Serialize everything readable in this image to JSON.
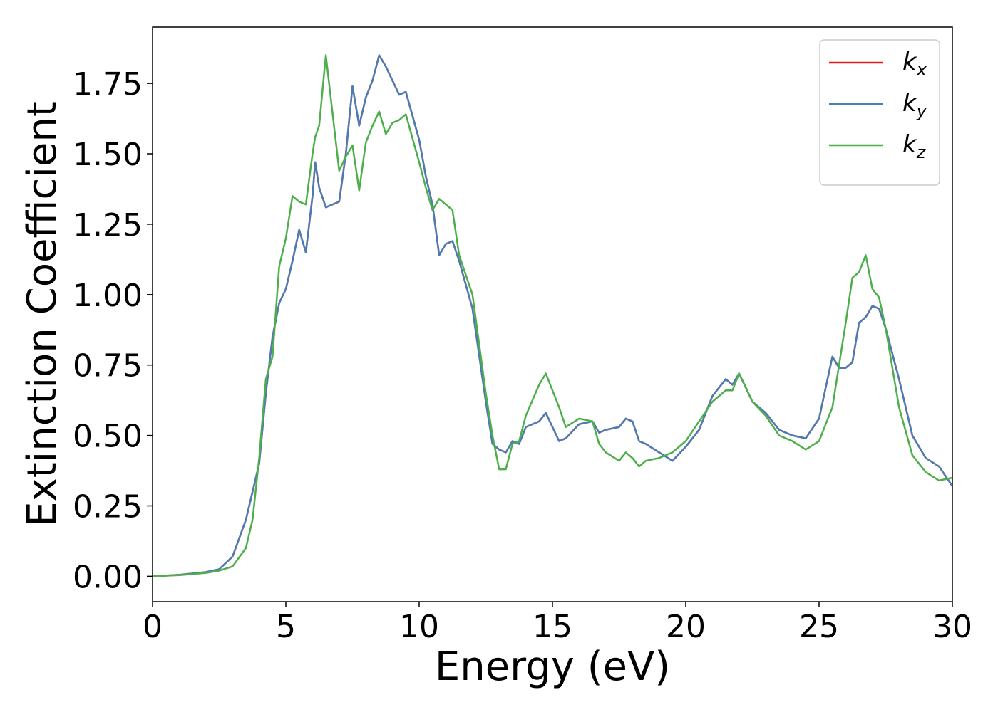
{
  "chart_data": {
    "type": "line",
    "xlabel": "Energy (eV)",
    "ylabel": "Extinction Coefficient",
    "x": [
      0,
      1,
      2,
      2.5,
      3,
      3.5,
      3.75,
      4,
      4.25,
      4.5,
      4.75,
      5,
      5.25,
      5.5,
      5.75,
      6,
      6.1,
      6.25,
      6.5,
      7,
      7.25,
      7.5,
      7.75,
      8,
      8.25,
      8.5,
      8.75,
      9,
      9.25,
      9.5,
      10,
      10.25,
      10.5,
      10.75,
      11,
      11.25,
      11.5,
      12,
      12.5,
      12.75,
      13,
      13.25,
      13.5,
      13.75,
      14,
      14.5,
      14.75,
      15,
      15.25,
      15.5,
      16,
      16.5,
      16.75,
      17,
      17.5,
      17.75,
      18,
      18.25,
      18.5,
      19,
      19.5,
      20,
      20.5,
      21,
      21.5,
      21.75,
      22,
      22.5,
      23,
      23.5,
      24,
      24.5,
      25,
      25.5,
      25.75,
      26,
      26.25,
      26.5,
      26.75,
      27,
      27.25,
      27.5,
      28,
      28.5,
      29,
      29.5,
      30
    ],
    "series": [
      {
        "name": "kx",
        "color": "#e41a1c",
        "values": [
          0,
          0.005,
          0.015,
          0.025,
          0.07,
          0.2,
          0.3,
          0.4,
          0.65,
          0.85,
          0.97,
          1.02,
          1.12,
          1.23,
          1.15,
          1.35,
          1.47,
          1.38,
          1.31,
          1.33,
          1.5,
          1.74,
          1.6,
          1.7,
          1.76,
          1.85,
          1.81,
          1.76,
          1.71,
          1.72,
          1.55,
          1.42,
          1.32,
          1.14,
          1.18,
          1.19,
          1.12,
          0.95,
          0.62,
          0.47,
          0.45,
          0.44,
          0.48,
          0.47,
          0.53,
          0.55,
          0.58,
          0.53,
          0.48,
          0.49,
          0.54,
          0.55,
          0.51,
          0.52,
          0.53,
          0.56,
          0.55,
          0.48,
          0.47,
          0.44,
          0.41,
          0.46,
          0.52,
          0.64,
          0.7,
          0.68,
          0.72,
          0.62,
          0.58,
          0.52,
          0.5,
          0.49,
          0.56,
          0.78,
          0.74,
          0.74,
          0.76,
          0.9,
          0.92,
          0.96,
          0.95,
          0.88,
          0.7,
          0.5,
          0.42,
          0.39,
          0.32
        ]
      },
      {
        "name": "ky",
        "color": "#4a7db5",
        "values": [
          0,
          0.005,
          0.015,
          0.025,
          0.07,
          0.2,
          0.3,
          0.4,
          0.65,
          0.85,
          0.97,
          1.02,
          1.12,
          1.23,
          1.15,
          1.35,
          1.47,
          1.38,
          1.31,
          1.33,
          1.5,
          1.74,
          1.6,
          1.7,
          1.76,
          1.85,
          1.81,
          1.76,
          1.71,
          1.72,
          1.55,
          1.42,
          1.32,
          1.14,
          1.18,
          1.19,
          1.12,
          0.95,
          0.62,
          0.47,
          0.45,
          0.44,
          0.48,
          0.47,
          0.53,
          0.55,
          0.58,
          0.53,
          0.48,
          0.49,
          0.54,
          0.55,
          0.51,
          0.52,
          0.53,
          0.56,
          0.55,
          0.48,
          0.47,
          0.44,
          0.41,
          0.46,
          0.52,
          0.64,
          0.7,
          0.68,
          0.72,
          0.62,
          0.58,
          0.52,
          0.5,
          0.49,
          0.56,
          0.78,
          0.74,
          0.74,
          0.76,
          0.9,
          0.92,
          0.96,
          0.95,
          0.88,
          0.7,
          0.5,
          0.42,
          0.39,
          0.32
        ]
      },
      {
        "name": "kz",
        "color": "#4daf4a",
        "values": [
          0,
          0.004,
          0.012,
          0.02,
          0.035,
          0.1,
          0.2,
          0.42,
          0.7,
          0.78,
          1.1,
          1.2,
          1.35,
          1.33,
          1.32,
          1.5,
          1.56,
          1.6,
          1.85,
          1.44,
          1.49,
          1.53,
          1.37,
          1.54,
          1.6,
          1.65,
          1.57,
          1.61,
          1.62,
          1.64,
          1.47,
          1.38,
          1.3,
          1.34,
          1.32,
          1.3,
          1.14,
          1.0,
          0.65,
          0.5,
          0.38,
          0.38,
          0.47,
          0.48,
          0.57,
          0.68,
          0.72,
          0.66,
          0.6,
          0.53,
          0.56,
          0.55,
          0.47,
          0.44,
          0.41,
          0.44,
          0.42,
          0.39,
          0.41,
          0.42,
          0.44,
          0.48,
          0.55,
          0.62,
          0.66,
          0.66,
          0.72,
          0.62,
          0.57,
          0.5,
          0.48,
          0.45,
          0.48,
          0.6,
          0.75,
          0.9,
          1.06,
          1.08,
          1.14,
          1.02,
          0.99,
          0.88,
          0.6,
          0.43,
          0.37,
          0.34,
          0.35
        ]
      }
    ],
    "xlim": [
      0,
      30
    ],
    "xticks": [
      0,
      5,
      10,
      15,
      20,
      25,
      30
    ],
    "ylim": [
      -0.09,
      1.95
    ],
    "yticks": [
      {
        "value": 0,
        "label": "0.00"
      },
      {
        "value": 0.25,
        "label": "0.25"
      },
      {
        "value": 0.5,
        "label": "0.50"
      },
      {
        "value": 0.75,
        "label": "0.75"
      },
      {
        "value": 1,
        "label": "1.00"
      },
      {
        "value": 1.25,
        "label": "1.25"
      },
      {
        "value": 1.5,
        "label": "1.50"
      },
      {
        "value": 1.75,
        "label": "1.75"
      }
    ],
    "legend": "upper right",
    "grid": false
  }
}
